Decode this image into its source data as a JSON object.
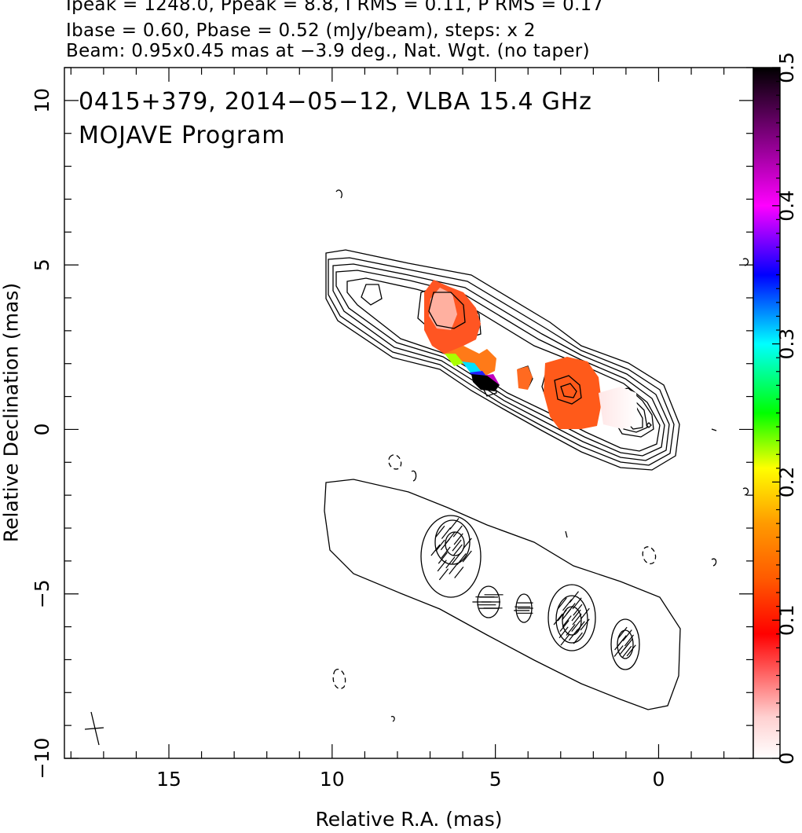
{
  "header": {
    "line1": "Ipeak = 1248.0, Ppeak = 8.8, I RMS = 0.11, P RMS = 0.17",
    "line2": "Ibase = 0.60, Pbase = 0.52 (mJy/beam), steps: x 2",
    "line3": "Beam: 0.95x0.45 mas at −3.9 deg., Nat. Wgt. (no taper)"
  },
  "annotation": {
    "line1": "0415+379, 2014−05−12, VLBA 15.4 GHz",
    "line2": "MOJAVE Program"
  },
  "axes": {
    "xlabel": "Relative R.A. (mas)",
    "ylabel": "Relative Declination (mas)"
  },
  "chart_data": {
    "type": "heatmap",
    "x_range": [
      18.2,
      -2.9
    ],
    "y_range": [
      -10,
      11
    ],
    "x_ticks": [
      15,
      10,
      5,
      0
    ],
    "x_tick_labels": [
      "15",
      "10",
      "5",
      "0"
    ],
    "y_ticks": [
      10,
      5,
      0,
      -5,
      -10
    ],
    "y_tick_labels": [
      "10",
      "5",
      "0",
      "−5",
      "−10"
    ],
    "colorbar": {
      "range": [
        0,
        0.5
      ],
      "ticks": [
        0,
        0.1,
        0.2,
        0.3,
        0.4,
        0.5
      ],
      "tick_labels": [
        "0",
        "0.1",
        "0.2",
        "0.3",
        "0.4",
        "0.5"
      ],
      "colormap": [
        "#ffffff",
        "#ff0000",
        "#ff8c00",
        "#ffff00",
        "#00ff00",
        "#00ffff",
        "#0000ff",
        "#ff00ff",
        "#000000"
      ]
    },
    "stokes_i_contours_upper": {
      "core": [
        0.0,
        0.3
      ],
      "knots": [
        {
          "x": 6.6,
          "y": 3.7,
          "value": 0.07
        },
        {
          "x": 2.6,
          "y": 1.2,
          "value": 0.08
        },
        {
          "x": 5.2,
          "y": 1.6,
          "value": 0.5
        },
        {
          "x": 4.0,
          "y": 1.7,
          "value": 0.09
        },
        {
          "x": 0.9,
          "y": 0.5,
          "value": 0.01
        }
      ]
    },
    "polarization_knots_lower": [
      {
        "x": 6.4,
        "y": -3.4
      },
      {
        "x": 5.0,
        "y": -5.2
      },
      {
        "x": 4.0,
        "y": -5.4
      },
      {
        "x": 2.9,
        "y": -5.9
      },
      {
        "x": 0.9,
        "y": -6.5
      }
    ]
  }
}
